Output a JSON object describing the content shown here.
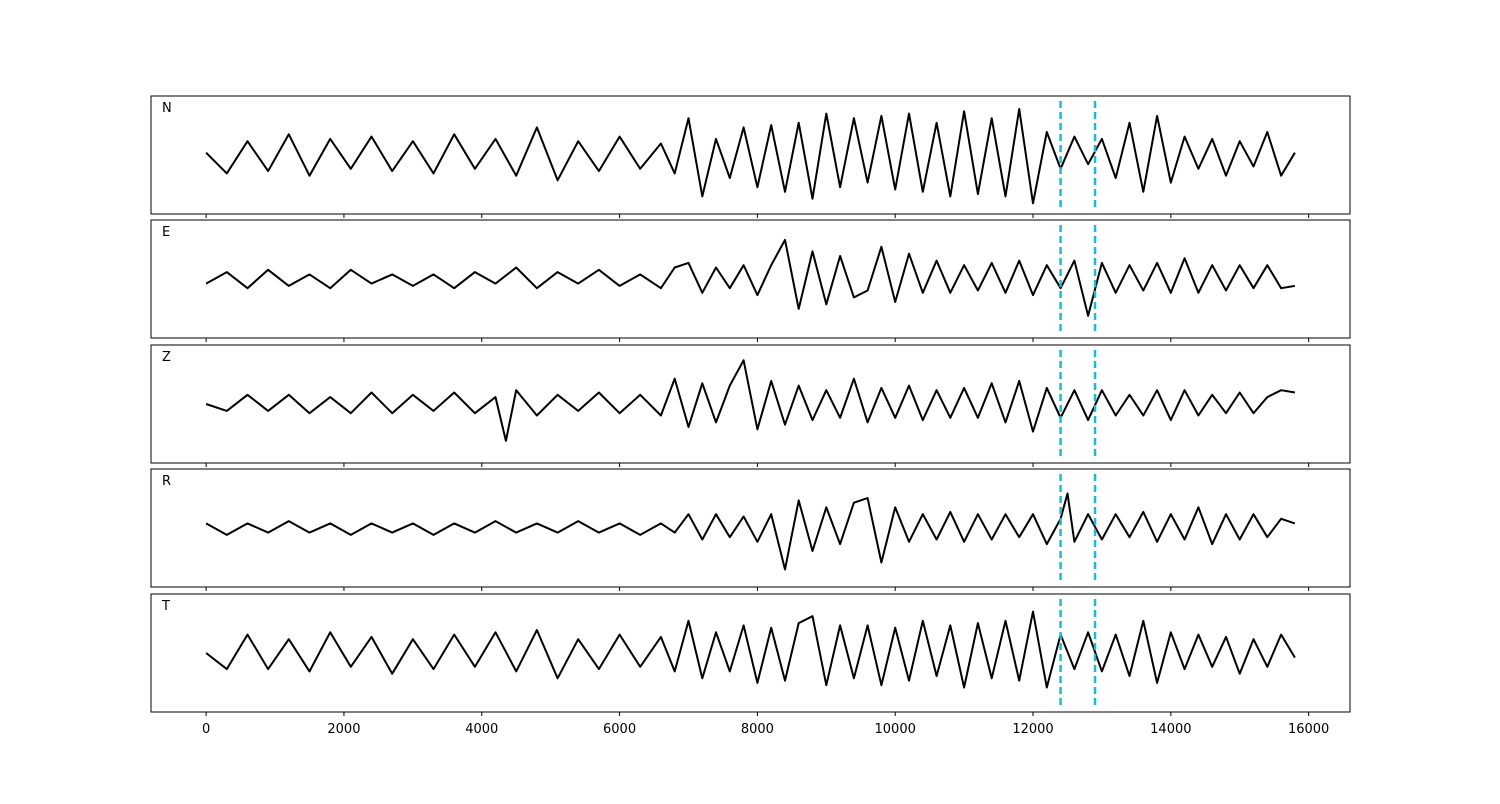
{
  "chart_data": {
    "type": "line",
    "title": "",
    "xlabel": "",
    "ylabel": "",
    "xlim": [
      -800,
      16600
    ],
    "xticks": [
      0,
      2000,
      4000,
      6000,
      8000,
      10000,
      12000,
      14000,
      16000
    ],
    "grid": false,
    "legend": "none",
    "markers": {
      "x": [
        12400,
        12900
      ],
      "color": "#17becf",
      "style": "dashed"
    },
    "panels": [
      {
        "label": "N",
        "trace": {
          "x": [
            0,
            300,
            600,
            900,
            1200,
            1500,
            1800,
            2100,
            2400,
            2700,
            3000,
            3300,
            3600,
            3900,
            4200,
            4500,
            4800,
            5100,
            5400,
            5700,
            6000,
            6300,
            6600,
            6800,
            7000,
            7200,
            7400,
            7600,
            7800,
            8000,
            8200,
            8400,
            8600,
            8800,
            9000,
            9200,
            9400,
            9600,
            9800,
            10000,
            10200,
            10400,
            10600,
            10800,
            11000,
            11200,
            11400,
            11600,
            11800,
            12000,
            12200,
            12400,
            12600,
            12800,
            13000,
            13200,
            13400,
            13600,
            13800,
            14000,
            14200,
            14400,
            14600,
            14800,
            15000,
            15200,
            15400,
            15600,
            15800
          ],
          "y": [
            0.05,
            -0.4,
            0.3,
            -0.35,
            0.45,
            -0.45,
            0.35,
            -0.3,
            0.4,
            -0.35,
            0.3,
            -0.4,
            0.45,
            -0.3,
            0.35,
            -0.45,
            0.6,
            -0.55,
            0.3,
            -0.35,
            0.4,
            -0.3,
            0.25,
            -0.4,
            0.8,
            -0.9,
            0.35,
            -0.5,
            0.6,
            -0.7,
            0.65,
            -0.8,
            0.7,
            -0.95,
            0.9,
            -0.7,
            0.8,
            -0.6,
            0.85,
            -0.75,
            0.9,
            -0.8,
            0.7,
            -0.9,
            0.95,
            -0.85,
            0.8,
            -0.9,
            1.0,
            -1.05,
            0.5,
            -0.3,
            0.4,
            -0.2,
            0.35,
            -0.5,
            0.7,
            -0.8,
            0.85,
            -0.6,
            0.4,
            -0.3,
            0.35,
            -0.45,
            0.3,
            -0.25,
            0.5,
            -0.45,
            0.05
          ]
        }
      },
      {
        "label": "E",
        "trace": {
          "x": [
            0,
            300,
            600,
            900,
            1200,
            1500,
            1800,
            2100,
            2400,
            2700,
            3000,
            3300,
            3600,
            3900,
            4200,
            4500,
            4800,
            5100,
            5400,
            5700,
            6000,
            6300,
            6600,
            6800,
            7000,
            7200,
            7400,
            7600,
            7800,
            8000,
            8200,
            8400,
            8600,
            8800,
            9000,
            9200,
            9400,
            9600,
            9800,
            10000,
            10200,
            10400,
            10600,
            10800,
            11000,
            11200,
            11400,
            11600,
            11800,
            12000,
            12200,
            12400,
            12600,
            12800,
            13000,
            13200,
            13400,
            13600,
            13800,
            14000,
            14200,
            14400,
            14600,
            14800,
            15000,
            15200,
            15400,
            15600,
            15800
          ],
          "y": [
            -0.1,
            0.15,
            -0.2,
            0.2,
            -0.15,
            0.1,
            -0.2,
            0.2,
            -0.1,
            0.1,
            -0.15,
            0.1,
            -0.2,
            0.15,
            -0.1,
            0.25,
            -0.2,
            0.15,
            -0.1,
            0.2,
            -0.15,
            0.1,
            -0.2,
            0.25,
            0.35,
            -0.3,
            0.25,
            -0.2,
            0.3,
            -0.35,
            0.3,
            0.85,
            -0.65,
            0.6,
            -0.55,
            0.5,
            -0.4,
            -0.25,
            0.7,
            -0.5,
            0.55,
            -0.3,
            0.4,
            -0.3,
            0.3,
            -0.25,
            0.35,
            -0.3,
            0.4,
            -0.35,
            0.3,
            -0.2,
            0.4,
            -0.8,
            0.35,
            -0.3,
            0.3,
            -0.25,
            0.35,
            -0.3,
            0.45,
            -0.3,
            0.3,
            -0.25,
            0.3,
            -0.2,
            0.3,
            -0.2,
            -0.15
          ]
        }
      },
      {
        "label": "Z",
        "trace": {
          "x": [
            0,
            300,
            600,
            900,
            1200,
            1500,
            1800,
            2100,
            2400,
            2700,
            3000,
            3300,
            3600,
            3900,
            4200,
            4350,
            4500,
            4800,
            5100,
            5400,
            5700,
            6000,
            6300,
            6600,
            6800,
            7000,
            7200,
            7400,
            7600,
            7800,
            8000,
            8200,
            8400,
            8600,
            8800,
            9000,
            9200,
            9400,
            9600,
            9800,
            10000,
            10200,
            10400,
            10600,
            10800,
            11000,
            11200,
            11400,
            11600,
            11800,
            12000,
            12200,
            12400,
            12600,
            12800,
            13000,
            13200,
            13400,
            13600,
            13800,
            14000,
            14200,
            14400,
            14600,
            14800,
            15000,
            15200,
            15400,
            15600,
            15800
          ],
          "y": [
            0.0,
            -0.15,
            0.2,
            -0.15,
            0.2,
            -0.2,
            0.15,
            -0.2,
            0.25,
            -0.2,
            0.2,
            -0.15,
            0.25,
            -0.2,
            0.15,
            -0.8,
            0.3,
            -0.25,
            0.2,
            -0.15,
            0.25,
            -0.2,
            0.2,
            -0.25,
            0.55,
            -0.5,
            0.45,
            -0.4,
            0.4,
            0.95,
            -0.55,
            0.5,
            -0.45,
            0.4,
            -0.35,
            0.3,
            -0.3,
            0.55,
            -0.4,
            0.35,
            -0.3,
            0.4,
            -0.35,
            0.3,
            -0.3,
            0.35,
            -0.3,
            0.45,
            -0.4,
            0.5,
            -0.6,
            0.35,
            -0.3,
            0.3,
            -0.35,
            0.3,
            -0.25,
            0.2,
            -0.25,
            0.3,
            -0.35,
            0.3,
            -0.25,
            0.2,
            -0.2,
            0.25,
            -0.2,
            0.15,
            0.3,
            0.25
          ]
        }
      },
      {
        "label": "R",
        "trace": {
          "x": [
            0,
            300,
            600,
            900,
            1200,
            1500,
            1800,
            2100,
            2400,
            2700,
            3000,
            3300,
            3600,
            3900,
            4200,
            4500,
            4800,
            5100,
            5400,
            5700,
            6000,
            6300,
            6600,
            6800,
            7000,
            7200,
            7400,
            7600,
            7800,
            8000,
            8200,
            8400,
            8600,
            8800,
            9000,
            9200,
            9400,
            9600,
            9800,
            10000,
            10200,
            10400,
            10600,
            10800,
            11000,
            11200,
            11400,
            11600,
            11800,
            12000,
            12200,
            12400,
            12500,
            12600,
            12800,
            13000,
            13200,
            13400,
            13600,
            13800,
            14000,
            14200,
            14400,
            14600,
            14800,
            15000,
            15200,
            15400,
            15600,
            15800
          ],
          "y": [
            0.1,
            -0.15,
            0.1,
            -0.1,
            0.15,
            -0.1,
            0.1,
            -0.15,
            0.1,
            -0.1,
            0.1,
            -0.15,
            0.1,
            -0.1,
            0.15,
            -0.1,
            0.1,
            -0.1,
            0.15,
            -0.1,
            0.1,
            -0.15,
            0.1,
            -0.1,
            0.3,
            -0.25,
            0.3,
            -0.2,
            0.25,
            -0.3,
            0.3,
            -0.9,
            0.6,
            -0.5,
            0.45,
            -0.35,
            0.55,
            0.65,
            -0.75,
            0.45,
            -0.3,
            0.3,
            -0.25,
            0.35,
            -0.3,
            0.3,
            -0.25,
            0.3,
            -0.2,
            0.3,
            -0.35,
            0.2,
            0.75,
            -0.3,
            0.3,
            -0.25,
            0.3,
            -0.2,
            0.35,
            -0.3,
            0.3,
            -0.25,
            0.45,
            -0.35,
            0.3,
            -0.25,
            0.3,
            -0.2,
            0.2,
            0.1
          ]
        }
      },
      {
        "label": "T",
        "trace": {
          "x": [
            0,
            300,
            600,
            900,
            1200,
            1500,
            1800,
            2100,
            2400,
            2700,
            3000,
            3300,
            3600,
            3900,
            4200,
            4500,
            4800,
            5100,
            5400,
            5700,
            6000,
            6300,
            6600,
            6800,
            7000,
            7200,
            7400,
            7600,
            7800,
            8000,
            8200,
            8400,
            8600,
            8800,
            9000,
            9200,
            9400,
            9600,
            9800,
            10000,
            10200,
            10400,
            10600,
            10800,
            11000,
            11200,
            11400,
            11600,
            11800,
            12000,
            12200,
            12400,
            12600,
            12800,
            13000,
            13200,
            13400,
            13600,
            13800,
            14000,
            14200,
            14400,
            14600,
            14800,
            15000,
            15200,
            15400,
            15600,
            15800
          ],
          "y": [
            0.0,
            -0.35,
            0.4,
            -0.35,
            0.3,
            -0.4,
            0.45,
            -0.3,
            0.35,
            -0.45,
            0.3,
            -0.35,
            0.4,
            -0.3,
            0.45,
            -0.4,
            0.5,
            -0.55,
            0.3,
            -0.35,
            0.4,
            -0.3,
            0.35,
            -0.4,
            0.7,
            -0.55,
            0.45,
            -0.4,
            0.6,
            -0.65,
            0.55,
            -0.6,
            0.65,
            0.8,
            -0.7,
            0.6,
            -0.55,
            0.6,
            -0.7,
            0.55,
            -0.6,
            0.7,
            -0.5,
            0.6,
            -0.75,
            0.65,
            -0.55,
            0.7,
            -0.6,
            0.9,
            -0.75,
            0.4,
            -0.35,
            0.45,
            -0.4,
            0.4,
            -0.5,
            0.7,
            -0.65,
            0.45,
            -0.35,
            0.4,
            -0.3,
            0.35,
            -0.45,
            0.3,
            -0.3,
            0.4,
            -0.1
          ]
        }
      }
    ]
  }
}
